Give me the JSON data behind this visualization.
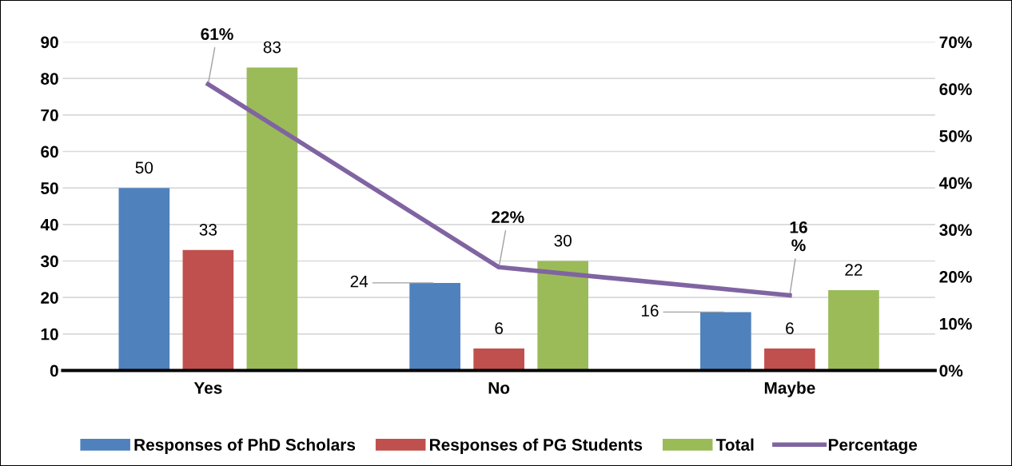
{
  "chart_data": {
    "type": "bar",
    "categories": [
      "Yes",
      "No",
      "Maybe"
    ],
    "series": [
      {
        "name": "Responses of PhD Scholars",
        "color": "#4f81bd",
        "values": [
          50,
          24,
          16
        ],
        "value_labels": [
          "50",
          "24",
          "16"
        ]
      },
      {
        "name": "Responses of PG Students",
        "color": "#c0504d",
        "values": [
          33,
          6,
          6
        ],
        "value_labels": [
          "33",
          "6",
          "6"
        ]
      },
      {
        "name": "Total",
        "color": "#9bbb59",
        "values": [
          83,
          30,
          22
        ],
        "value_labels": [
          "83",
          "30",
          "22"
        ]
      },
      {
        "name": "Percentage",
        "type": "line",
        "axis": "y2",
        "color": "#8064a2",
        "values": [
          61,
          22,
          16
        ],
        "value_labels": [
          "61%",
          "22%",
          "16\n%"
        ]
      }
    ],
    "ylim": [
      0,
      90
    ],
    "yticks": [
      0,
      10,
      20,
      30,
      40,
      50,
      60,
      70,
      80,
      90
    ],
    "y2lim": [
      0,
      70
    ],
    "y2ticks": [
      {
        "value": 0,
        "label": "0%"
      },
      {
        "value": 10,
        "label": "10%"
      },
      {
        "value": 20,
        "label": "20%"
      },
      {
        "value": 30,
        "label": "30%"
      },
      {
        "value": 40,
        "label": "40%"
      },
      {
        "value": 50,
        "label": "50%"
      },
      {
        "value": 60,
        "label": "60%"
      },
      {
        "value": 70,
        "label": "70%"
      }
    ],
    "grid": "y",
    "legend": "bottom",
    "marker": "none",
    "line_style": "solid"
  }
}
